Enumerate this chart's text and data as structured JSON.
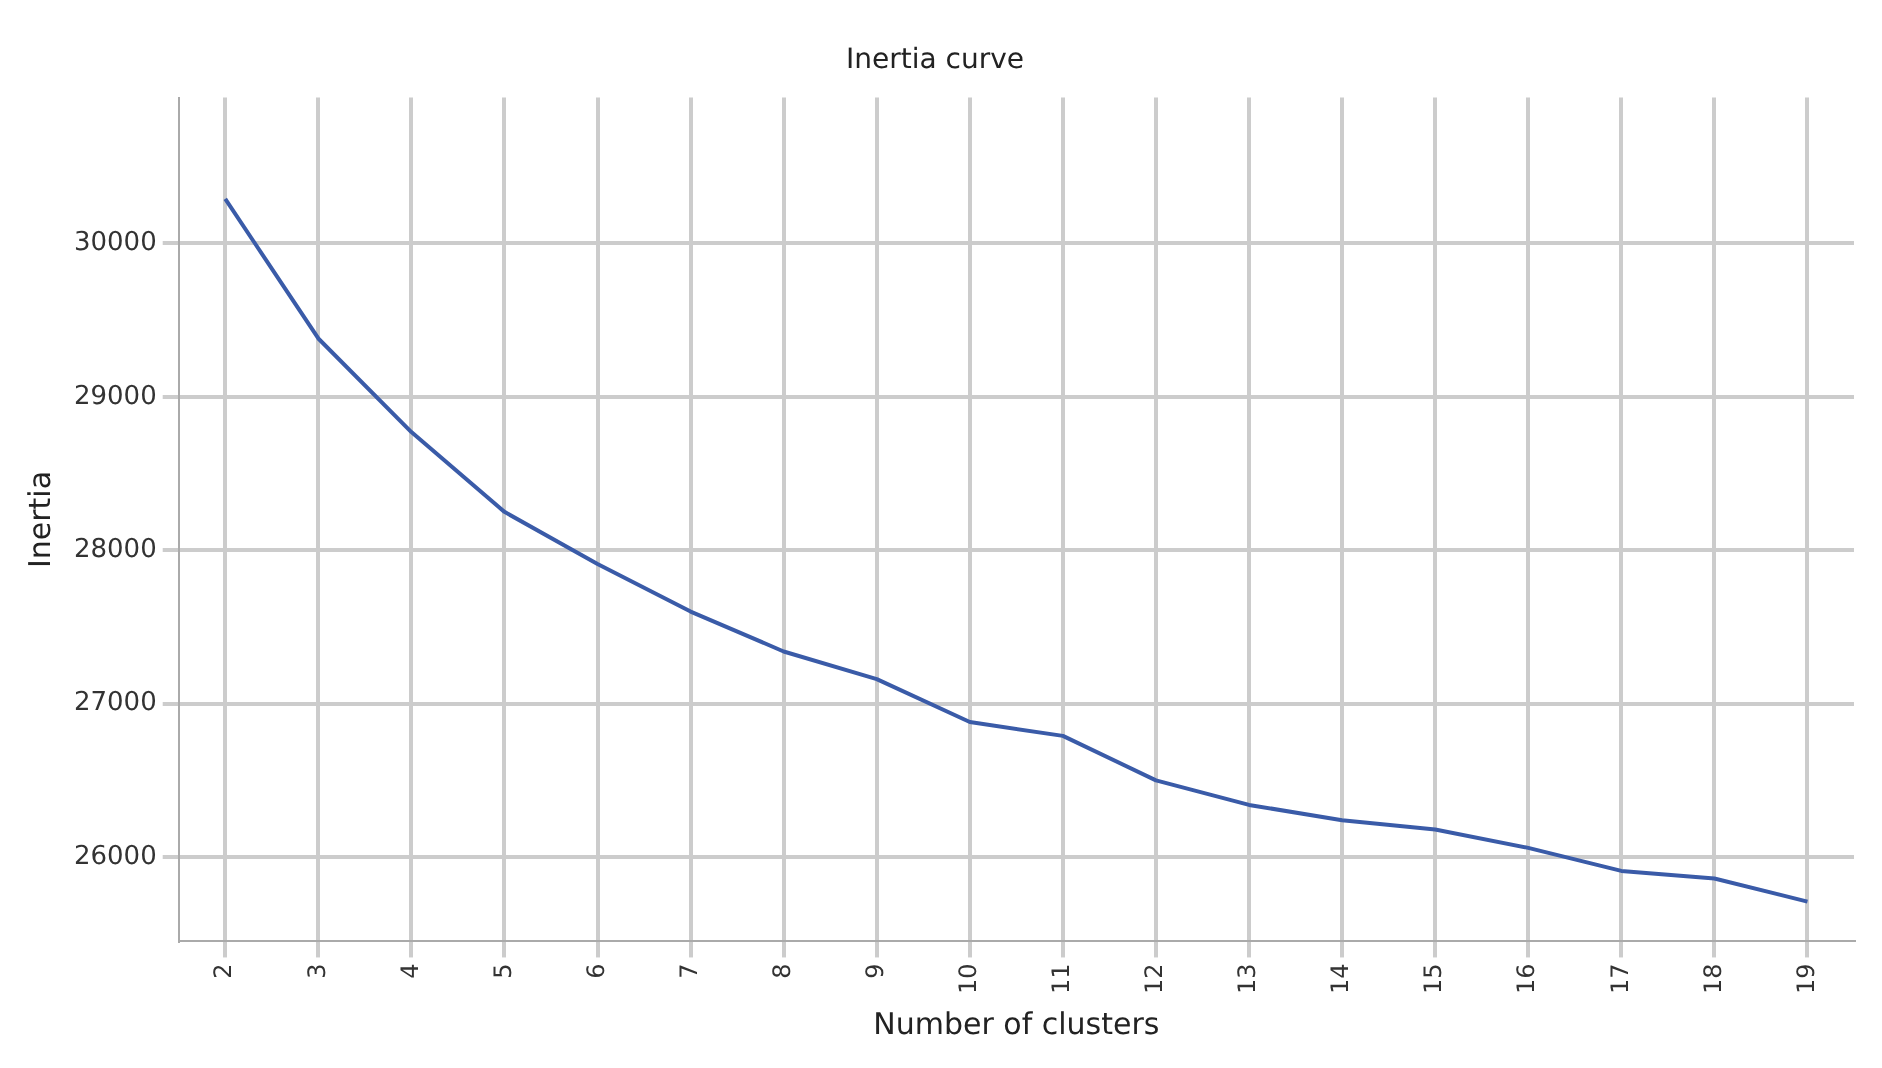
{
  "chart_data": {
    "type": "line",
    "title": "Inertia curve",
    "xlabel": "Number of clusters",
    "ylabel": "Inertia",
    "categories": [
      "2",
      "3",
      "4",
      "5",
      "6",
      "7",
      "8",
      "9",
      "10",
      "11",
      "12",
      "13",
      "14",
      "15",
      "16",
      "17",
      "18",
      "19"
    ],
    "series": [
      {
        "color": "#3a5ba8",
        "values": [
          30290,
          29380,
          28770,
          28250,
          27910,
          27600,
          27340,
          27160,
          26880,
          26790,
          26500,
          26340,
          26240,
          26180,
          26060,
          25910,
          25860,
          25710
        ]
      }
    ],
    "ylim": [
      25450,
      30950
    ],
    "yticks": [
      26000,
      27000,
      28000,
      29000,
      30000
    ],
    "grid": true,
    "legend": false,
    "marker": "none",
    "line_style": "solid"
  }
}
